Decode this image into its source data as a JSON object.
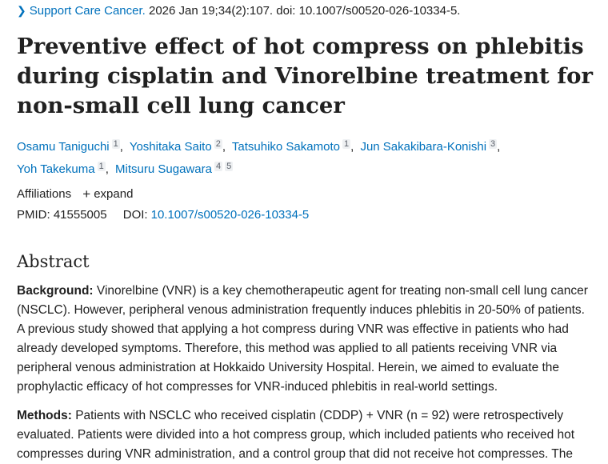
{
  "citation": {
    "journal": "Support Care Cancer.",
    "details": "2026 Jan 19;34(2):107. doi: 10.1007/s00520-026-10334-5."
  },
  "title": "Preventive effect of hot compress on phlebitis during cisplatin and Vinorelbine treatment for non-small cell lung cancer",
  "authors": [
    {
      "name": "Osamu Taniguchi",
      "aff": "1"
    },
    {
      "name": "Yoshitaka Saito",
      "aff": "2"
    },
    {
      "name": "Tatsuhiko Sakamoto",
      "aff": "1"
    },
    {
      "name": "Jun Sakakibara-Konishi",
      "aff": "3"
    },
    {
      "name": "Yoh Takekuma",
      "aff": "1"
    },
    {
      "name": "Mitsuru Sugawara",
      "aff": "4",
      "aff2": "5"
    }
  ],
  "affiliations": {
    "label": "Affiliations",
    "expand_icon": "+",
    "expand_label": "expand"
  },
  "ids": {
    "pmid_label": "PMID:",
    "pmid": "41555005",
    "doi_label": "DOI:",
    "doi": "10.1007/s00520-026-10334-5"
  },
  "abstract": {
    "heading": "Abstract",
    "background_label": "Background:",
    "background_text": "Vinorelbine (VNR) is a key chemotherapeutic agent for treating non-small cell lung cancer (NSCLC). However, peripheral venous administration frequently induces phlebitis in 20-50% of patients. A previous study showed that applying a hot compress during VNR was effective in patients who had already developed symptoms. Therefore, this method was applied to all patients receiving VNR via peripheral venous administration at Hokkaido University Hospital. Herein, we aimed to evaluate the prophylactic efficacy of hot compresses for VNR-induced phlebitis in real-world settings.",
    "methods_label": "Methods:",
    "methods_text": "Patients with NSCLC who received cisplatin (CDDP) + VNR (n = 92) were retrospectively evaluated. Patients were divided into a hot compress group, which included patients who received hot compresses during VNR administration, and a control group that did not receive hot compresses. The"
  }
}
